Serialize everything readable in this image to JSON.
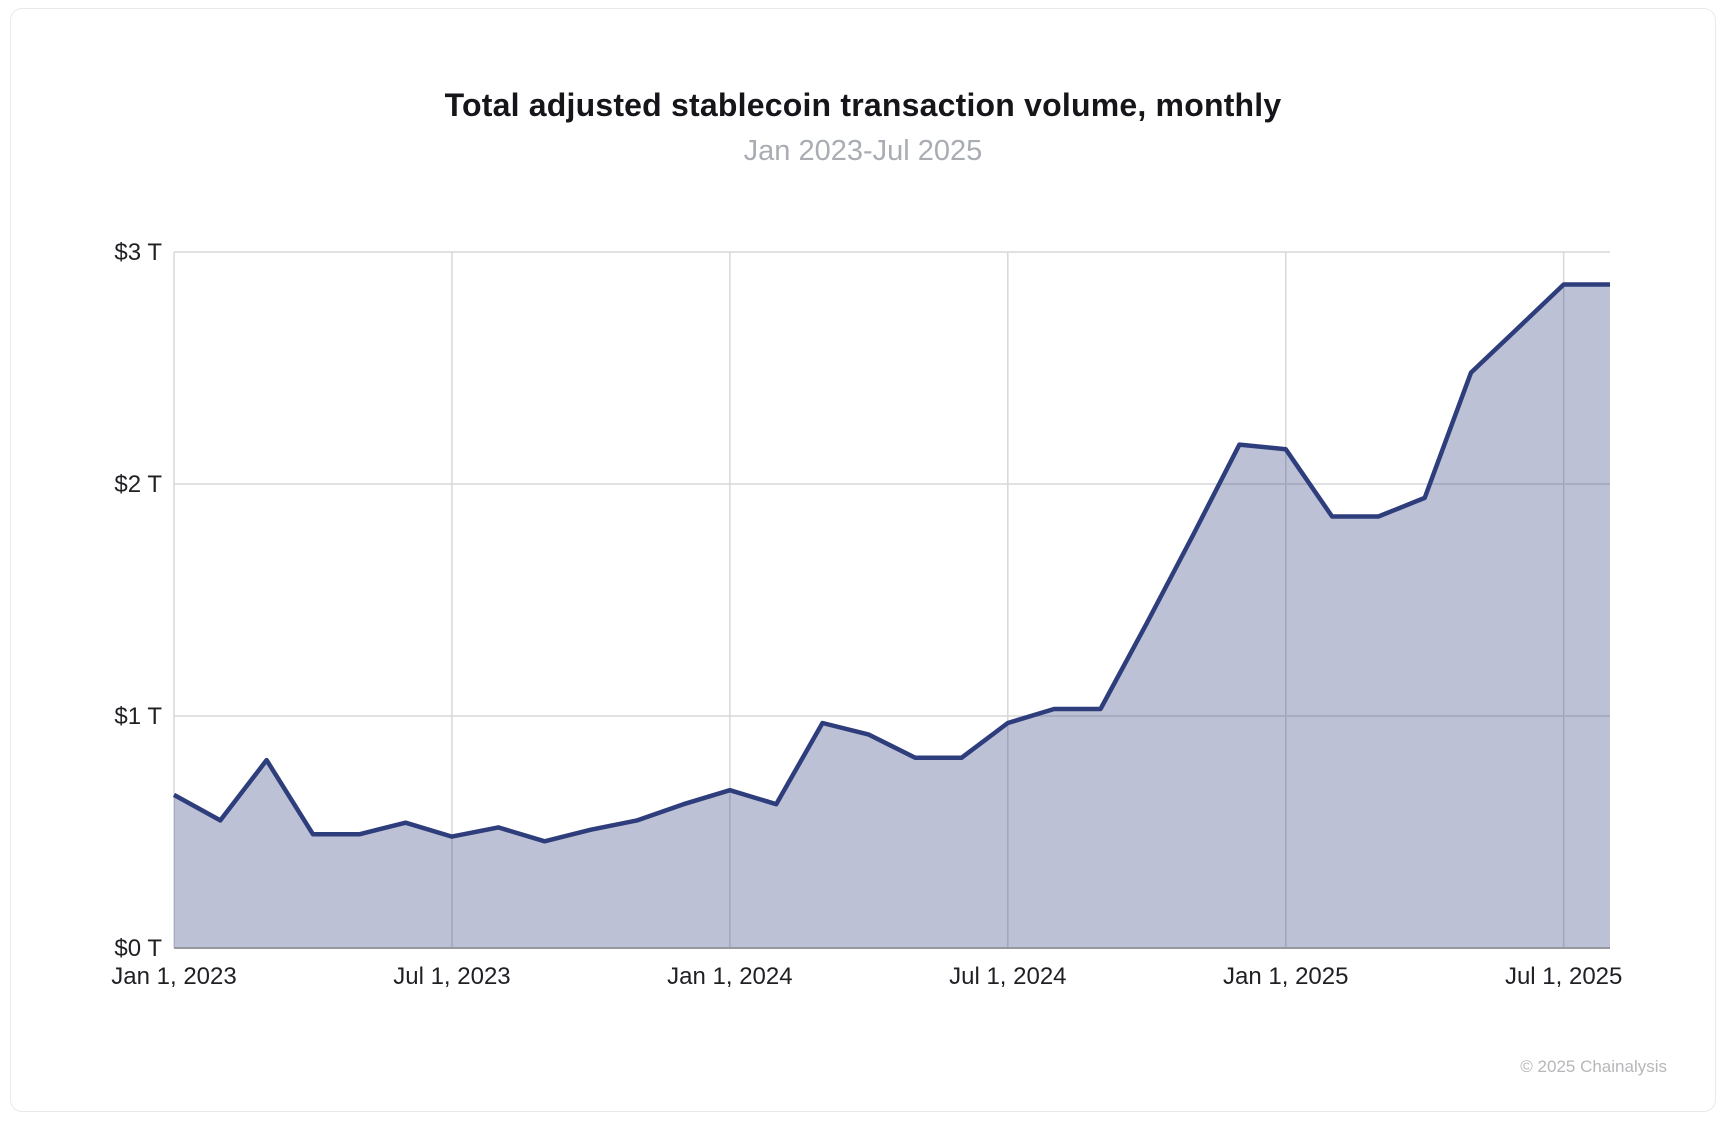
{
  "header": {
    "title": "Total adjusted stablecoin transaction volume, monthly",
    "subtitle": "Jan 2023-Jul 2025"
  },
  "footer": {
    "copyright": "© 2025 Chainalysis"
  },
  "chart_data": {
    "type": "area",
    "title": "Total adjusted stablecoin transaction volume, monthly",
    "subtitle": "Jan 2023-Jul 2025",
    "unit": "USD trillions",
    "x": [
      "Jan 2023",
      "Feb 2023",
      "Mar 2023",
      "Apr 2023",
      "May 2023",
      "Jun 2023",
      "Jul 2023",
      "Aug 2023",
      "Sep 2023",
      "Oct 2023",
      "Nov 2023",
      "Dec 2023",
      "Jan 2024",
      "Feb 2024",
      "Mar 2024",
      "Apr 2024",
      "May 2024",
      "Jun 2024",
      "Jul 2024",
      "Aug 2024",
      "Sep 2024",
      "Oct 2024",
      "Nov 2024",
      "Dec 2024",
      "Jan 2025",
      "Feb 2025",
      "Mar 2025",
      "Apr 2025",
      "May 2025",
      "Jun 2025",
      "Jul 2025"
    ],
    "values": [
      0.66,
      0.55,
      0.81,
      0.49,
      0.49,
      0.54,
      0.48,
      0.52,
      0.46,
      0.51,
      0.55,
      0.62,
      0.68,
      0.62,
      0.97,
      0.92,
      0.82,
      0.82,
      0.97,
      1.03,
      1.03,
      1.4,
      1.78,
      2.17,
      2.15,
      1.86,
      1.86,
      1.94,
      2.48,
      2.67,
      2.86
    ],
    "ylim": [
      0,
      3
    ],
    "y_ticks": [
      {
        "value": 0,
        "label": "$0 T"
      },
      {
        "value": 1,
        "label": "$1 T"
      },
      {
        "value": 2,
        "label": "$2 T"
      },
      {
        "value": 3,
        "label": "$3 T"
      }
    ],
    "x_ticks": [
      {
        "index": 0,
        "label": "Jan 1, 2023"
      },
      {
        "index": 6,
        "label": "Jul 1, 2023"
      },
      {
        "index": 12,
        "label": "Jan 1, 2024"
      },
      {
        "index": 18,
        "label": "Jul 1, 2024"
      },
      {
        "index": 24,
        "label": "Jan 1, 2025"
      },
      {
        "index": 30,
        "label": "Jul 1, 2025"
      }
    ],
    "x_domain_extra_months": 1,
    "grid": true,
    "legend": "none",
    "line_color": "#2e3d7c",
    "fill_color": "#2e3d7c",
    "fill_opacity": 0.32,
    "grid_color": "#d7d7da",
    "axis_line_color": "#97979d",
    "label_color": "#1f1f24"
  }
}
